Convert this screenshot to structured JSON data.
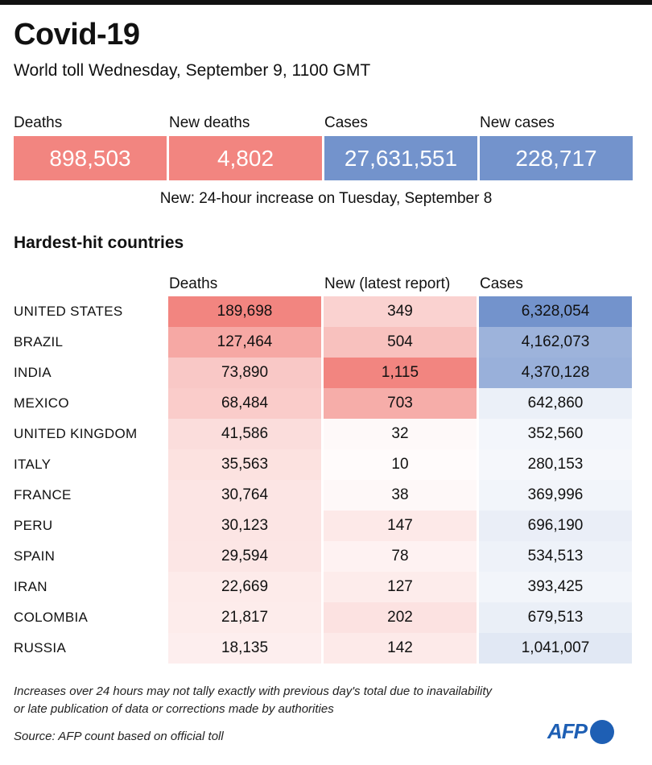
{
  "header": {
    "title": "Covid-19",
    "subtitle": "World toll Wednesday, September 9, 1100 GMT"
  },
  "kpis": [
    {
      "label": "Deaths",
      "value": "898,503",
      "color": "#f28580"
    },
    {
      "label": "New deaths",
      "value": "4,802",
      "color": "#f28580"
    },
    {
      "label": "Cases",
      "value": "27,631,551",
      "color": "#7393cc"
    },
    {
      "label": "New cases",
      "value": "228,717",
      "color": "#7393cc"
    }
  ],
  "note": "New: 24-hour increase on Tuesday, September 8",
  "section_title": "Hardest-hit countries",
  "chart_data": {
    "type": "table",
    "title": "Hardest-hit countries",
    "columns": [
      "Deaths",
      "New (latest report)",
      "Cases"
    ],
    "column_colors": [
      "#f28580",
      "#f28580",
      "#7393cc"
    ],
    "rows": [
      {
        "country": "UNITED STATES",
        "deaths": 189698,
        "new": 349,
        "cases": 6328054
      },
      {
        "country": "BRAZIL",
        "deaths": 127464,
        "new": 504,
        "cases": 4162073
      },
      {
        "country": "INDIA",
        "deaths": 73890,
        "new": 1115,
        "cases": 4370128
      },
      {
        "country": "MEXICO",
        "deaths": 68484,
        "new": 703,
        "cases": 642860
      },
      {
        "country": "UNITED KINGDOM",
        "deaths": 41586,
        "new": 32,
        "cases": 352560
      },
      {
        "country": "ITALY",
        "deaths": 35563,
        "new": 10,
        "cases": 280153
      },
      {
        "country": "FRANCE",
        "deaths": 30764,
        "new": 38,
        "cases": 369996
      },
      {
        "country": "PERU",
        "deaths": 30123,
        "new": 147,
        "cases": 696190
      },
      {
        "country": "SPAIN",
        "deaths": 29594,
        "new": 78,
        "cases": 534513
      },
      {
        "country": "IRAN",
        "deaths": 22669,
        "new": 127,
        "cases": 393425
      },
      {
        "country": "COLOMBIA",
        "deaths": 21817,
        "new": 202,
        "cases": 679513
      },
      {
        "country": "RUSSIA",
        "deaths": 18135,
        "new": 142,
        "cases": 1041007
      }
    ]
  },
  "footer": {
    "disclaimer_1": "Increases over 24 hours may not tally exactly with previous day's total due to inavailability",
    "disclaimer_2": "or late publication of data or corrections made by authorities",
    "source": "Source: AFP count based on official toll",
    "logo": "AFP"
  }
}
